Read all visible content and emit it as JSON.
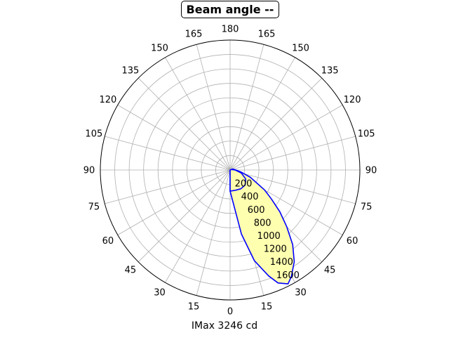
{
  "chart_data": {
    "type": "polar-area",
    "title": "Beam angle --",
    "xlabel": "IMax 3246 cd",
    "angle_labels": [
      "180",
      "165",
      "150",
      "135",
      "120",
      "105",
      "90",
      "75",
      "60",
      "45",
      "30",
      "15",
      "0",
      "15",
      "30",
      "45",
      "60",
      "75",
      "90",
      "105",
      "120",
      "135",
      "150",
      "165"
    ],
    "radial_tick_labels": [
      "200",
      "400",
      "600",
      "800",
      "1000",
      "1200",
      "1400",
      "1600"
    ],
    "radial_ticks": [
      200,
      400,
      600,
      800,
      1000,
      1200,
      1400,
      1600
    ],
    "rlim": [
      0,
      1800
    ],
    "grid": true,
    "fill_color": "#ffffb0",
    "line_color": "#0000ff",
    "series": [
      {
        "values": [
          {
            "angle": 0,
            "r": 293
          },
          {
            "angle": 10,
            "r": 900
          },
          {
            "angle": 15,
            "r": 1300
          },
          {
            "angle": 20,
            "r": 1560
          },
          {
            "angle": 23,
            "r": 1700
          },
          {
            "angle": 27,
            "r": 1770
          },
          {
            "angle": 30,
            "r": 1700
          },
          {
            "angle": 35,
            "r": 1550
          },
          {
            "angle": 40,
            "r": 1350
          },
          {
            "angle": 45,
            "r": 1110
          },
          {
            "angle": 50,
            "r": 900
          },
          {
            "angle": 55,
            "r": 700
          },
          {
            "angle": 60,
            "r": 550
          },
          {
            "angle": 70,
            "r": 300
          },
          {
            "angle": 80,
            "r": 150
          },
          {
            "angle": 90,
            "r": 80
          },
          {
            "angle": 110,
            "r": 40
          },
          {
            "angle": 180,
            "r": 0
          }
        ]
      },
      {
        "values": [
          {
            "angle": 180,
            "r": 0
          },
          {
            "angle": 110,
            "r": 20
          },
          {
            "angle": 90,
            "r": 70
          },
          {
            "angle": 75,
            "r": 160
          },
          {
            "angle": 60,
            "r": 250
          },
          {
            "angle": 45,
            "r": 295
          },
          {
            "angle": 30,
            "r": 300
          },
          {
            "angle": 15,
            "r": 290
          },
          {
            "angle": 0,
            "r": 293
          }
        ]
      }
    ]
  }
}
